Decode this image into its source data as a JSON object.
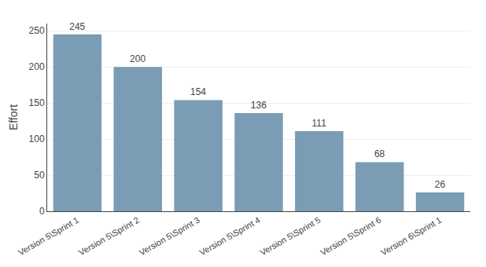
{
  "chart_data": {
    "type": "bar",
    "categories": [
      "Version 5\\Sprint 1",
      "Version 5\\Sprint 2",
      "Version 5\\Sprint 3",
      "Version 5\\Sprint 4",
      "Version 5\\Sprint 5",
      "Version 5\\Sprint 6",
      "Version 6\\Sprint 1"
    ],
    "values": [
      245,
      200,
      154,
      136,
      111,
      68,
      26
    ],
    "color": "#7a9db5",
    "ylabel": "Effort",
    "ylim": [
      0,
      260
    ],
    "yticks": [
      0,
      50,
      100,
      150,
      200,
      250
    ],
    "grid": true,
    "data_labels": true
  }
}
